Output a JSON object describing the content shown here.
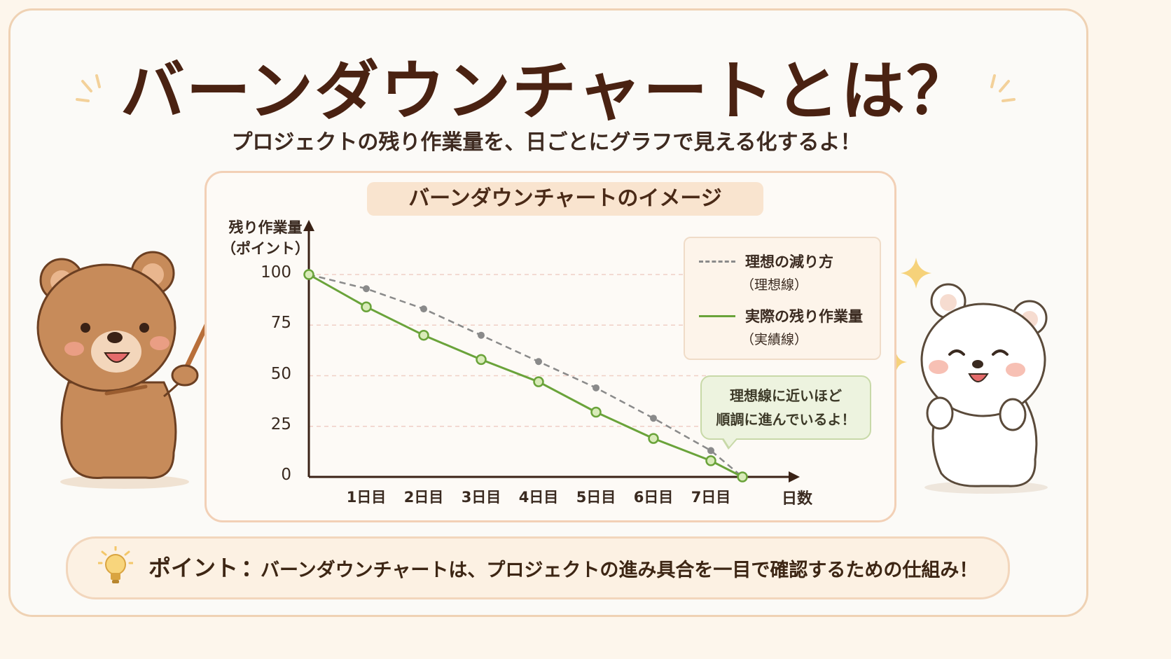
{
  "header": {
    "title": "バーンダウンチャートとは？",
    "subtitle": "プロジェクトの残り作業量を、日ごとにグラフで見える化するよ！"
  },
  "chart_tag": "バーンダウンチャートのイメージ",
  "legend": {
    "ideal_main": "理想の減り方",
    "ideal_sub": "（理想線）",
    "actual_main": "実際の残り作業量",
    "actual_sub": "（実績線）"
  },
  "bubble": {
    "line1": "理想線に近いほど",
    "line2": "順調に進んでいるよ！"
  },
  "point": {
    "label": "ポイント",
    "colon": "：",
    "text": "バーンダウンチャートは、プロジェクトの進み具合を一目で確認するための仕組み！"
  },
  "chart_data": {
    "type": "line",
    "ylabel_line1": "残り作業量",
    "ylabel_line2": "（ポイント）",
    "xlabel": "日数",
    "ylim": [
      0,
      100
    ],
    "y_ticks": [
      "100",
      "75",
      "50",
      "25",
      "0"
    ],
    "categories": [
      "1日目",
      "2日目",
      "3日目",
      "4日目",
      "5日目",
      "6日目",
      "7日目"
    ],
    "x": [
      0,
      1,
      2,
      3,
      4,
      5,
      6,
      7,
      7.55
    ],
    "series": [
      {
        "name": "理想の減り方",
        "style": "dashed",
        "color": "#8a8a8a",
        "values": [
          100,
          93,
          83,
          70,
          57,
          44,
          29,
          13,
          0
        ]
      },
      {
        "name": "実際の残り作業量",
        "style": "solid",
        "color": "#6aa33a",
        "values": [
          100,
          84,
          70,
          58,
          47,
          32,
          19,
          8,
          0
        ]
      }
    ],
    "grid": true,
    "legend": "top-right"
  }
}
